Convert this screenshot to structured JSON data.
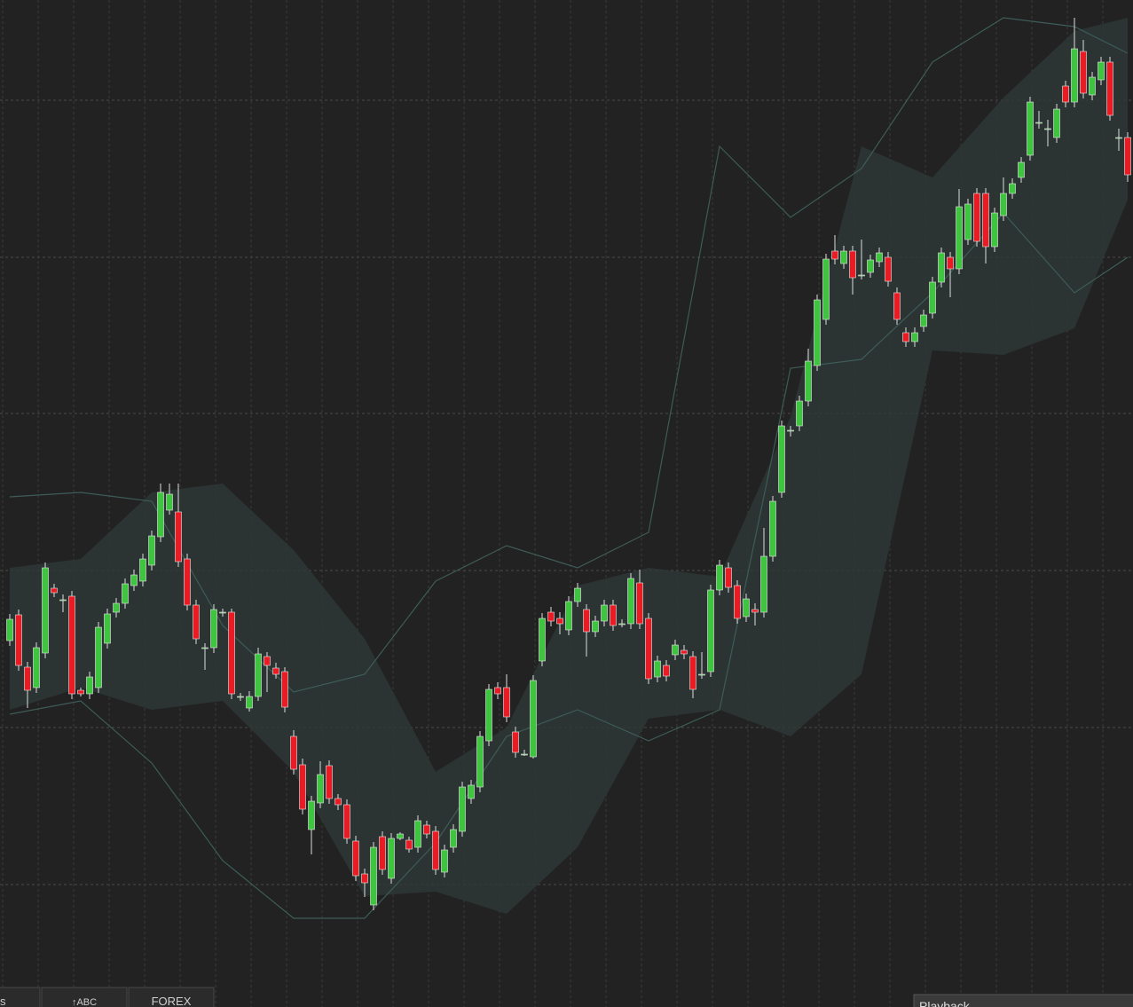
{
  "chart_data": {
    "type": "candlestick",
    "ylim": [
      0,
      1135
    ],
    "up_color": "#3fc43f",
    "down_color": "#e81c24",
    "band_color": "#3d5c57",
    "shade_color": "#2e3937",
    "open": [
      413,
      442,
      383,
      360,
      399,
      472,
      459,
      463,
      357,
      353,
      360,
      410,
      445,
      455,
      475,
      480,
      498,
      530,
      560,
      558,
      505,
      453,
      405,
      405,
      445,
      445,
      350,
      337,
      350,
      395,
      382,
      378,
      305,
      273,
      200,
      230,
      272,
      235,
      228,
      187,
      150,
      115,
      192,
      145,
      190,
      188,
      180,
      205,
      198,
      152,
      180,
      198,
      235,
      248,
      300,
      360,
      360,
      310,
      285,
      282,
      390,
      445,
      438,
      425,
      457,
      448,
      423,
      435,
      453,
      432,
      432,
      478,
      438,
      372,
      385,
      397,
      402,
      395,
      375,
      378,
      470,
      495,
      475,
      440,
      448,
      445,
      508,
      580,
      650,
      655,
      683,
      723,
      775,
      852,
      838,
      852,
      825,
      828,
      840,
      845,
      805,
      760,
      750,
      767,
      782,
      817,
      845,
      832,
      865,
      917,
      917,
      857,
      892,
      917,
      935,
      960,
      997,
      990,
      980,
      1038,
      1020,
      1077,
      1028,
      1045,
      1065,
      980,
      980
    ],
    "high": [
      443,
      448,
      389,
      411,
      501,
      477,
      465,
      469,
      360,
      378,
      434,
      449,
      461,
      483,
      493,
      511,
      537,
      590,
      590,
      590,
      511,
      459,
      410,
      454,
      449,
      449,
      354,
      356,
      405,
      400,
      388,
      383,
      312,
      280,
      238,
      277,
      278,
      240,
      234,
      193,
      156,
      186,
      198,
      196,
      197,
      192,
      216,
      210,
      204,
      183,
      206,
      254,
      256,
      311,
      364,
      366,
      375,
      316,
      290,
      374,
      444,
      451,
      445,
      463,
      478,
      454,
      441,
      459,
      459,
      437,
      489,
      493,
      444,
      396,
      391,
      414,
      408,
      401,
      400,
      476,
      504,
      501,
      481,
      466,
      455,
      540,
      576,
      661,
      655,
      689,
      742,
      803,
      849,
      870,
      858,
      858,
      865,
      848,
      856,
      851,
      811,
      766,
      766,
      786,
      823,
      856,
      851,
      922,
      911,
      923,
      923,
      901,
      935,
      934,
      958,
      1026,
      1010,
      1000,
      1018,
      1044,
      1115,
      1090,
      1054,
      1071,
      1071,
      990,
      986
    ],
    "low": [
      407,
      379,
      337,
      354,
      393,
      462,
      445,
      347,
      350,
      347,
      354,
      404,
      439,
      449,
      469,
      474,
      492,
      524,
      555,
      496,
      447,
      409,
      380,
      399,
      440,
      347,
      345,
      333,
      345,
      355,
      370,
      332,
      262,
      217,
      172,
      224,
      229,
      222,
      184,
      142,
      124,
      109,
      149,
      139,
      188,
      174,
      174,
      190,
      149,
      146,
      174,
      192,
      229,
      242,
      294,
      347,
      321,
      281,
      283,
      280,
      384,
      429,
      420,
      419,
      451,
      395,
      417,
      429,
      424,
      428,
      426,
      426,
      364,
      366,
      367,
      391,
      392,
      348,
      370,
      372,
      464,
      467,
      432,
      434,
      430,
      439,
      502,
      574,
      643,
      649,
      677,
      717,
      769,
      837,
      832,
      803,
      820,
      822,
      834,
      812,
      769,
      744,
      744,
      761,
      776,
      811,
      800,
      826,
      859,
      857,
      838,
      851,
      886,
      911,
      929,
      954,
      990,
      970,
      974,
      1014,
      1014,
      1024,
      1022,
      1039,
      999,
      965,
      930
    ],
    "close": [
      437,
      385,
      357,
      405,
      495,
      467,
      459,
      353,
      353,
      372,
      428,
      443,
      455,
      477,
      487,
      505,
      531,
      580,
      578,
      502,
      453,
      415,
      405,
      448,
      445,
      353,
      350,
      350,
      398,
      385,
      375,
      338,
      268,
      223,
      232,
      262,
      235,
      228,
      190,
      148,
      140,
      180,
      155,
      190,
      195,
      178,
      210,
      195,
      155,
      177,
      200,
      248,
      250,
      305,
      358,
      353,
      327,
      287,
      285,
      368,
      438,
      435,
      432,
      457,
      472,
      423,
      435,
      453,
      430,
      432,
      483,
      432,
      370,
      390,
      373,
      408,
      398,
      358,
      375,
      470,
      498,
      473,
      438,
      460,
      445,
      508,
      570,
      655,
      650,
      683,
      728,
      797,
      843,
      843,
      852,
      822,
      825,
      842,
      850,
      818,
      775,
      750,
      760,
      780,
      817,
      850,
      832,
      902,
      905,
      863,
      857,
      895,
      917,
      928,
      952,
      1020,
      997,
      990,
      1012,
      1020,
      1080,
      1030,
      1048,
      1065,
      1005,
      980,
      938
    ],
    "bands": {
      "x": [
        0,
        8,
        16,
        24,
        32,
        40,
        48,
        56,
        64,
        72,
        80,
        88,
        96,
        104,
        112,
        120,
        126
      ],
      "outer_upper": [
        575,
        580,
        570,
        430,
        355,
        375,
        480,
        520,
        495,
        535,
        970,
        890,
        945,
        1065,
        1115,
        1105,
        1075
      ],
      "outer_lower": [
        330,
        345,
        275,
        165,
        100,
        100,
        185,
        305,
        335,
        300,
        335,
        720,
        730,
        805,
        895,
        805,
        845
      ],
      "inner_upper": [
        495,
        505,
        580,
        590,
        515,
        415,
        265,
        315,
        475,
        495,
        485,
        665,
        970,
        935,
        1025,
        1100,
        1115
      ],
      "inner_lower": [
        335,
        360,
        335,
        345,
        265,
        125,
        130,
        105,
        180,
        325,
        335,
        305,
        375,
        740,
        735,
        765,
        910
      ]
    }
  },
  "toolbar": {
    "tabs": [
      "s",
      "↑ABC",
      "FOREX"
    ],
    "playback": "Playback"
  }
}
